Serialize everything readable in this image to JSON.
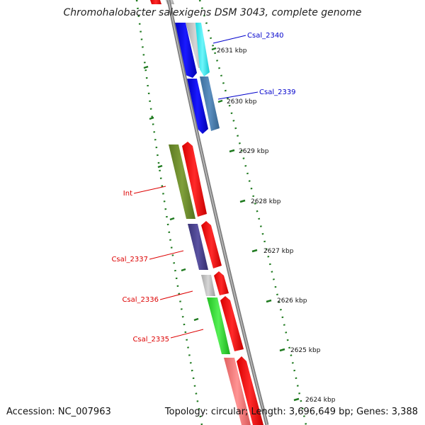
{
  "title": "Chromohalobacter salexigens DSM 3043, complete genome",
  "accession": "Accession: NC_007963",
  "summary": "Topology: circular; Length: 3,696,649 bp; Genes: 3,388",
  "colors": {
    "backbone": "#808080",
    "tick": "#1f7a1f",
    "label_blue": "#0000cc",
    "label_red": "#dd0000"
  },
  "tick_labels": [
    "2631 kbp",
    "2630 kbp",
    "2629 kbp",
    "2628 kbp",
    "2627 kbp",
    "2626 kbp",
    "2625 kbp",
    "2624 kbp"
  ],
  "gene_labels": [
    "Csal_2340",
    "Csal_2339",
    "Int",
    "Csal_2337",
    "Csal_2336",
    "Csal_2335"
  ]
}
